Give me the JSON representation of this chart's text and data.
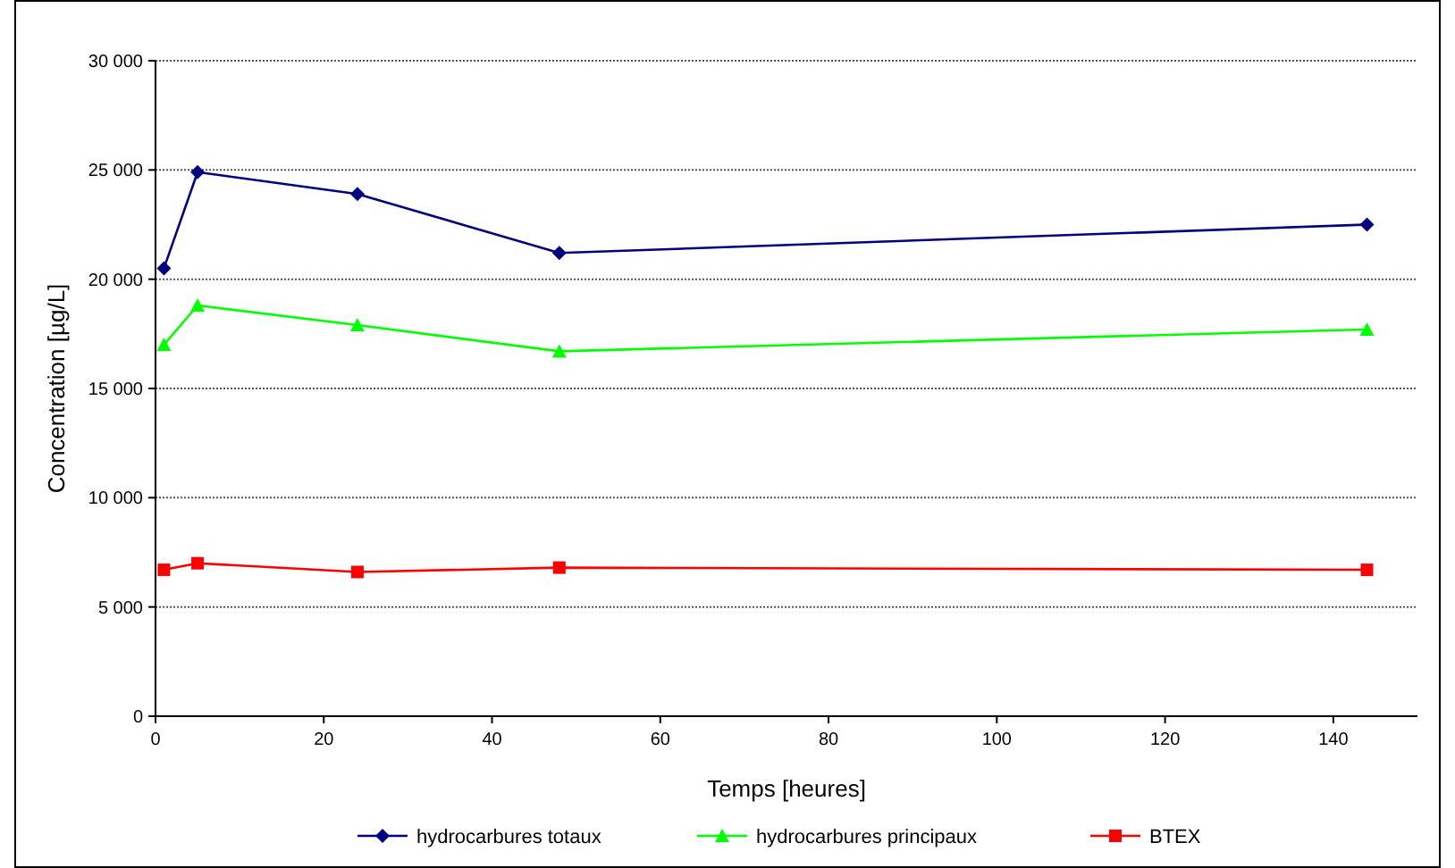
{
  "chart_data": {
    "type": "line",
    "xlabel": "Temps [heures]",
    "ylabel": "Concentration [µg/L]",
    "x": [
      1,
      5,
      24,
      48,
      144
    ],
    "series": [
      {
        "name": "hydrocarbures totaux",
        "color": "#000080",
        "marker": "diamond",
        "values": [
          20500,
          24900,
          23900,
          21200,
          22500
        ]
      },
      {
        "name": "hydrocarbures principaux",
        "color": "#00ff00",
        "marker": "triangle",
        "values": [
          17000,
          18800,
          17900,
          16700,
          17700
        ]
      },
      {
        "name": "BTEX",
        "color": "#ff0000",
        "marker": "square",
        "values": [
          6700,
          7000,
          6600,
          6800,
          6700
        ]
      }
    ],
    "xlim": [
      0,
      150
    ],
    "xticks": [
      0,
      20,
      40,
      60,
      80,
      100,
      120,
      140
    ],
    "ylim": [
      0,
      30000
    ],
    "yticks": [
      0,
      {
        "value": 5000,
        "label": "5 000"
      },
      {
        "value": 10000,
        "label": "10 000"
      },
      {
        "value": 15000,
        "label": "15 000"
      },
      {
        "value": 20000,
        "label": "20 000"
      },
      {
        "value": 25000,
        "label": "25 000"
      },
      {
        "value": 30000,
        "label": "30 000"
      }
    ],
    "grid": "y",
    "legend": "bottom",
    "line_style": "solid"
  }
}
